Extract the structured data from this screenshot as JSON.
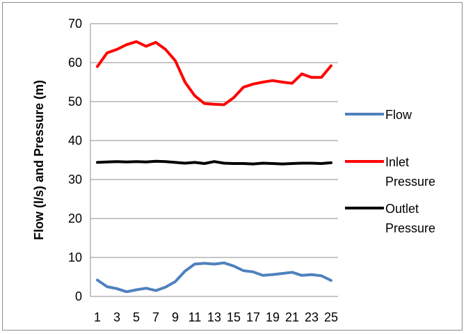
{
  "chart_data": {
    "type": "line",
    "ylabel": "Flow (l/s) and Pressure (m)",
    "xlabel": "",
    "ylim": [
      0,
      70
    ],
    "yticks": [
      0,
      10,
      20,
      30,
      40,
      50,
      60,
      70
    ],
    "x": [
      1,
      2,
      3,
      4,
      5,
      6,
      7,
      8,
      9,
      10,
      11,
      12,
      13,
      14,
      15,
      16,
      17,
      18,
      19,
      20,
      21,
      22,
      23,
      24,
      25
    ],
    "xtick_labels": [
      "1",
      "3",
      "5",
      "7",
      "9",
      "11",
      "13",
      "15",
      "17",
      "19",
      "21",
      "23",
      "25"
    ],
    "grid": "horizontal",
    "legend_position": "right",
    "series": [
      {
        "name": "Flow",
        "color": "#4F81BD",
        "values": [
          4.2,
          2.5,
          2.0,
          1.2,
          1.7,
          2.1,
          1.5,
          2.4,
          3.8,
          6.5,
          8.3,
          8.5,
          8.3,
          8.6,
          7.8,
          6.6,
          6.3,
          5.4,
          5.6,
          5.9,
          6.2,
          5.4,
          5.6,
          5.3,
          4.1
        ]
      },
      {
        "name": "Inlet Pressure",
        "legend_lines": [
          "Inlet",
          "Pressure"
        ],
        "color": "#FF0000",
        "values": [
          59.0,
          62.5,
          63.4,
          64.6,
          65.4,
          64.2,
          65.2,
          63.4,
          60.5,
          55.0,
          51.5,
          49.5,
          49.3,
          49.2,
          51.0,
          53.7,
          54.5,
          55.0,
          55.4,
          55.0,
          54.7,
          57.1,
          56.2,
          56.2,
          59.2
        ]
      },
      {
        "name": "Outlet Pressure",
        "legend_lines": [
          "Outlet",
          "Pressure"
        ],
        "color": "#000000",
        "values": [
          34.4,
          34.5,
          34.6,
          34.5,
          34.6,
          34.5,
          34.7,
          34.6,
          34.4,
          34.2,
          34.4,
          34.1,
          34.6,
          34.2,
          34.1,
          34.1,
          34.0,
          34.2,
          34.1,
          34.0,
          34.1,
          34.2,
          34.2,
          34.1,
          34.3
        ]
      }
    ]
  }
}
